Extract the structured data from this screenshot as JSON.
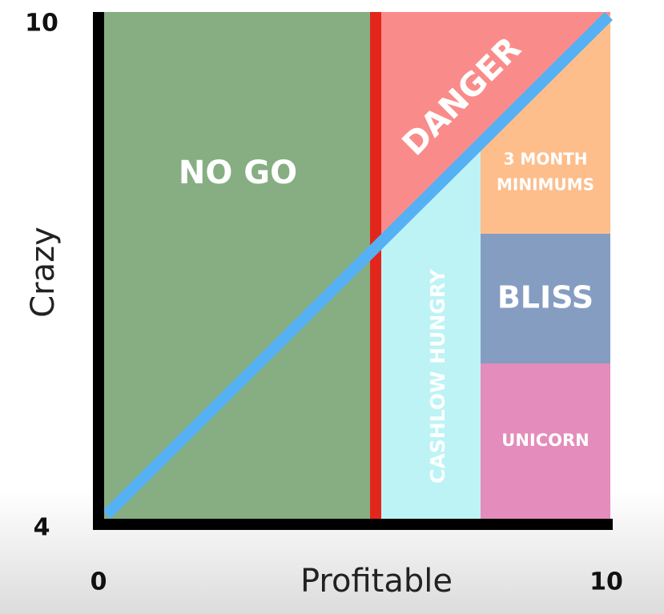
{
  "y_axis": {
    "label": "Crazy",
    "max": "10",
    "min": "4"
  },
  "x_axis": {
    "label": "Profitable",
    "min": "0",
    "max": "10"
  },
  "regions": {
    "no_go": "NO GO",
    "danger": "DANGER",
    "cashflow": "CASHLOW HUNGRY",
    "three_month": [
      "3 MONTH",
      "MINIMUMS"
    ],
    "bliss": "BLISS",
    "unicorn": "UNICORN"
  }
}
